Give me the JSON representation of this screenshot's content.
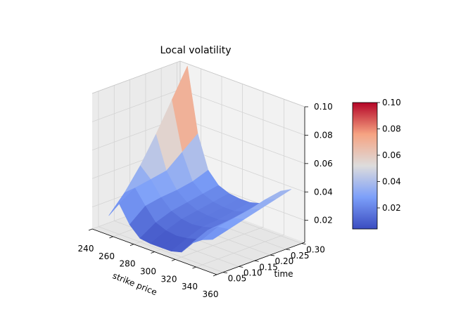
{
  "chart_data": {
    "type": "surface",
    "title": "Local volatility",
    "xlabel": "strike price",
    "ylabel": "time",
    "zlabel": "",
    "colormap": "coolwarm",
    "xlim": [
      240,
      360
    ],
    "ylim": [
      0.03,
      0.31
    ],
    "zlim": [
      0.0045,
      0.1
    ],
    "x_ticks": [
      "240",
      "260",
      "280",
      "300",
      "320",
      "340",
      "360"
    ],
    "y_ticks": [
      "0.05",
      "0.10",
      "0.15",
      "0.20",
      "0.25",
      "0.30"
    ],
    "z_ticks": [
      "0.02",
      "0.04",
      "0.06",
      "0.08",
      "0.10"
    ],
    "colorbar_ticks": [
      "0.02",
      "0.04",
      "0.06",
      "0.08",
      "0.10"
    ],
    "colorbar_range": [
      0.004,
      0.1
    ],
    "strike": [
      250,
      260,
      270,
      280,
      290,
      300,
      310,
      320,
      330,
      340,
      350
    ],
    "time": [
      0.05,
      0.1,
      0.15,
      0.2,
      0.25,
      0.3
    ],
    "volatility": [
      [
        0.015,
        0.026,
        0.014,
        0.007,
        0.006,
        0.006,
        0.006,
        0.008,
        0.017,
        0.022,
        0.025
      ],
      [
        0.027,
        0.033,
        0.023,
        0.014,
        0.011,
        0.01,
        0.011,
        0.013,
        0.022,
        0.027,
        0.028
      ],
      [
        0.042,
        0.035,
        0.025,
        0.018,
        0.015,
        0.014,
        0.015,
        0.017,
        0.023,
        0.029,
        0.031
      ],
      [
        0.06,
        0.037,
        0.026,
        0.02,
        0.017,
        0.016,
        0.016,
        0.018,
        0.024,
        0.031,
        0.034
      ],
      [
        0.08,
        0.046,
        0.028,
        0.022,
        0.019,
        0.018,
        0.018,
        0.02,
        0.026,
        0.034,
        0.037
      ],
      [
        0.1,
        0.055,
        0.032,
        0.024,
        0.021,
        0.02,
        0.02,
        0.022,
        0.028,
        0.036,
        0.04
      ]
    ]
  }
}
